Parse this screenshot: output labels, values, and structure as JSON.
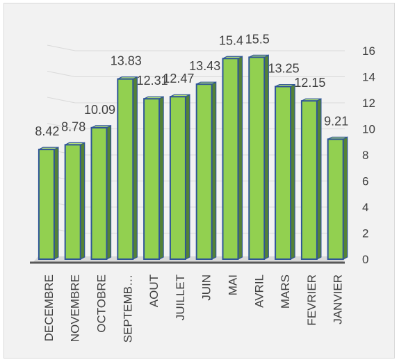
{
  "chart_data": {
    "type": "bar",
    "style": "3d-column",
    "categories": [
      "DECEMBRE",
      "NOVEMBRE",
      "OCTOBRE",
      "SEPTEMB…",
      "AOUT",
      "JUILLET",
      "JUIN",
      "MAI",
      "AVRIL",
      "MARS",
      "FEVRIER",
      "JANVIER"
    ],
    "values": [
      8.42,
      8.78,
      10.09,
      13.83,
      12.31,
      12.47,
      13.43,
      15.4,
      15.5,
      13.25,
      12.15,
      9.21
    ],
    "data_labels": [
      "8.42",
      "8.78",
      "10.09",
      "13.83",
      "12.31",
      "12.47",
      "13.43",
      "15.4",
      "15.5",
      "13.25",
      "12.15",
      "9.21"
    ],
    "title": "",
    "xlabel": "",
    "ylabel": "",
    "ylim": [
      0,
      16
    ],
    "yticks": [
      "0",
      "2",
      "4",
      "6",
      "8",
      "10",
      "12",
      "14",
      "16"
    ],
    "y_axis_position": "right",
    "grid": true,
    "legend": "none",
    "colors": {
      "bar_front": "#92d050",
      "bar_side": "#548235",
      "bar_outline": "#2f5597",
      "background": "#f2f2f2",
      "grid": "#d9d9d9",
      "axis": "#595959",
      "text": "#404040"
    }
  }
}
